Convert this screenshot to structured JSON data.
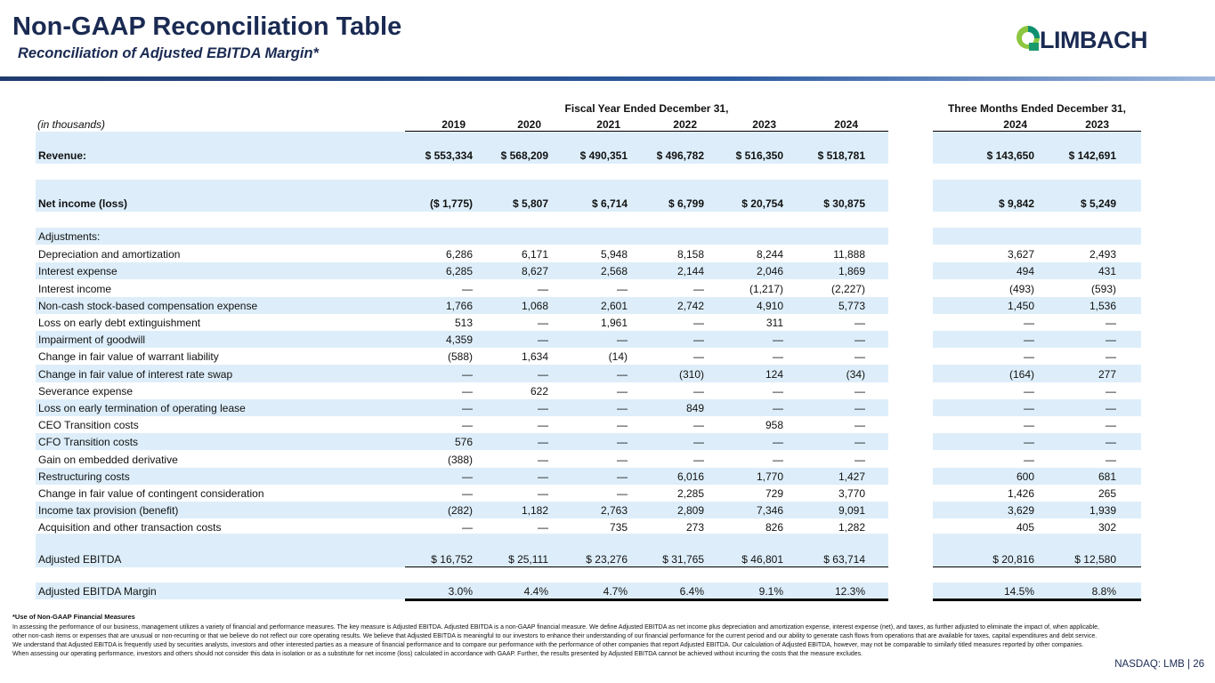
{
  "header": {
    "title": "Non-GAAP Reconciliation Table",
    "subtitle": "Reconciliation of Adjusted EBITDA Margin*",
    "logo": "LIMBACH"
  },
  "table": {
    "column_groups": [
      "Fiscal Year Ended December 31,",
      "Three Months Ended December 31,"
    ],
    "unit_label": "(in thousands)",
    "columns": [
      "2019",
      "2020",
      "2021",
      "2022",
      "2023",
      "2024",
      "2024",
      "2023"
    ],
    "rows": [
      {
        "label": "Revenue:",
        "values": [
          "$ 553,334",
          "$ 568,209",
          "$ 490,351",
          "$ 496,782",
          "$ 516,350",
          "$ 518,781",
          "$ 143,650",
          "$ 142,691"
        ]
      },
      {
        "label": "Net income (loss)",
        "values": [
          "($ 1,775)",
          "$ 5,807",
          "$ 6,714",
          "$ 6,799",
          "$ 20,754",
          "$ 30,875",
          "$ 9,842",
          "$ 5,249"
        ]
      },
      {
        "label": "Adjustments:"
      },
      {
        "label": "Depreciation and amortization",
        "values": [
          "6,286",
          "6,171",
          "5,948",
          "8,158",
          "8,244",
          "11,888",
          "3,627",
          "2,493"
        ]
      },
      {
        "label": "Interest expense",
        "values": [
          "6,285",
          "8,627",
          "2,568",
          "2,144",
          "2,046",
          "1,869",
          "494",
          "431"
        ]
      },
      {
        "label": "Interest income",
        "values": [
          "—",
          "—",
          "—",
          "—",
          "(1,217)",
          "(2,227)",
          "(493)",
          "(593)"
        ]
      },
      {
        "label": "Non-cash stock-based compensation expense",
        "values": [
          "1,766",
          "1,068",
          "2,601",
          "2,742",
          "4,910",
          "5,773",
          "1,450",
          "1,536"
        ]
      },
      {
        "label": "Loss on early debt extinguishment",
        "values": [
          "513",
          "—",
          "1,961",
          "—",
          "311",
          "—",
          "—",
          "—"
        ]
      },
      {
        "label": "Impairment of goodwill",
        "values": [
          "4,359",
          "—",
          "—",
          "—",
          "—",
          "—",
          "—",
          "—"
        ]
      },
      {
        "label": "Change in fair value of warrant liability",
        "values": [
          "(588)",
          "1,634",
          "(14)",
          "—",
          "—",
          "—",
          "—",
          "—"
        ]
      },
      {
        "label": "Change in fair value of interest rate swap",
        "values": [
          "—",
          "—",
          "—",
          "(310)",
          "124",
          "(34)",
          "(164)",
          "277"
        ]
      },
      {
        "label": "Severance expense",
        "values": [
          "—",
          "622",
          "—",
          "—",
          "—",
          "—",
          "—",
          "—"
        ]
      },
      {
        "label": "Loss on early termination of operating lease",
        "values": [
          "—",
          "—",
          "—",
          "849",
          "—",
          "—",
          "—",
          "—"
        ]
      },
      {
        "label": "CEO Transition costs",
        "values": [
          "—",
          "—",
          "—",
          "—",
          "958",
          "—",
          "—",
          "—"
        ]
      },
      {
        "label": "CFO Transition costs",
        "values": [
          "576",
          "—",
          "—",
          "—",
          "—",
          "—",
          "—",
          "—"
        ]
      },
      {
        "label": "Gain on embedded derivative",
        "values": [
          "(388)",
          "—",
          "—",
          "—",
          "—",
          "—",
          "—",
          "—"
        ]
      },
      {
        "label": "Restructuring costs",
        "values": [
          "—",
          "—",
          "—",
          "6,016",
          "1,770",
          "1,427",
          "600",
          "681"
        ]
      },
      {
        "label": "Change in fair value of contingent consideration",
        "values": [
          "—",
          "—",
          "—",
          "2,285",
          "729",
          "3,770",
          "1,426",
          "265"
        ]
      },
      {
        "label": "Income tax provision (benefit)",
        "values": [
          "(282)",
          "1,182",
          "2,763",
          "2,809",
          "7,346",
          "9,091",
          "3,629",
          "1,939"
        ]
      },
      {
        "label": "Acquisition and other transaction costs",
        "values": [
          "—",
          "—",
          "735",
          "273",
          "826",
          "1,282",
          "405",
          "302"
        ]
      },
      {
        "label": "Adjusted EBITDA",
        "values": [
          "$ 16,752",
          "$ 25,111",
          "$ 23,276",
          "$ 31,765",
          "$ 46,801",
          "$ 63,714",
          "$ 20,816",
          "$ 12,580"
        ]
      },
      {
        "label": "Adjusted EBITDA Margin",
        "values": [
          "3.0%",
          "4.4%",
          "4.7%",
          "6.4%",
          "9.1%",
          "12.3%",
          "14.5%",
          "8.8%"
        ]
      }
    ]
  },
  "footnote": {
    "heading": "*Use of Non-GAAP Financial Measures",
    "text": "In assessing the performance of our business, management utilizes a variety of financial and performance measures. The key measure is Adjusted EBITDA. Adjusted EBITDA is a non-GAAP financial measure. We define Adjusted EBITDA as net income plus depreciation and amortization expense, interest expense (net), and taxes, as further adjusted to eliminate the impact of, when applicable, other non-cash items or expenses that are unusual or non-recurring or that we believe do not reflect our core operating results. We believe that Adjusted EBITDA is meaningful to our investors to enhance their understanding of our financial performance for the current period and our ability to generate cash flows from operations that are available for taxes, capital expenditures and debt service. We understand that Adjusted EBITDA is frequently used by securities analysts, investors and other interested parties as a measure of financial performance and to compare our performance with the performance of other companies that report Adjusted EBITDA. Our calculation of Adjusted EBITDA, however, may not be comparable to similarly titled measures reported by other companies. When assessing our operating performance, investors and others should not consider this data in isolation or as a substitute for net income (loss) calculated in accordance with GAAP. Further, the results presented by Adjusted EBITDA cannot be achieved without incurring the costs that the measure excludes."
  },
  "footer": {
    "page": "NASDAQ: LMB | 26"
  }
}
